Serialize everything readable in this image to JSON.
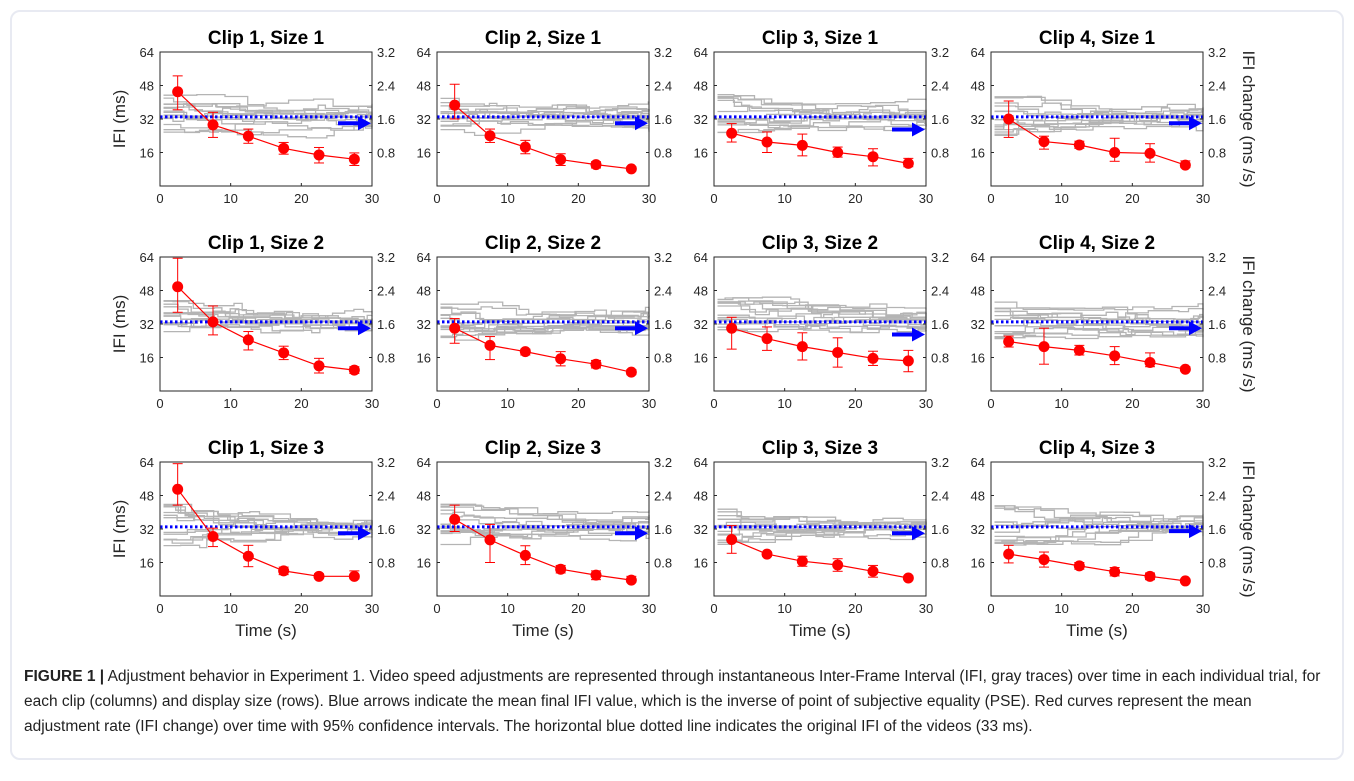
{
  "figure": {
    "caption_label": "FIGURE 1 |",
    "caption_text": " Adjustment behavior in Experiment 1. Video speed adjustments are represented through instantaneous Inter-Frame Interval (IFI, gray traces) over time in each individual trial, for each clip (columns) and display size (rows). Blue arrows indicate the mean final IFI value, which is the inverse of point of subjective equality (PSE). Red curves represent the mean adjustment rate (IFI change) over time with 95% confidence intervals. The horizontal blue dotted line indicates the original IFI of the videos (33 ms)."
  },
  "colors": {
    "trials": "#b4b4b4",
    "mean_rate": "#ff0000",
    "reference_line": "#0000ff",
    "final_arrow": "#0000ff"
  },
  "chart_data": [
    {
      "type": "line",
      "title": "Clip 1, Size 1",
      "xlabel": "",
      "ylabel": "IFI (ms)",
      "ylabel_right": "",
      "xlim": [
        0,
        30
      ],
      "ylim": [
        0,
        64
      ],
      "ylim_right": [
        0,
        3.2
      ],
      "x_ticks": [
        0,
        10,
        20,
        30
      ],
      "y_ticks": [
        16,
        32,
        48,
        64
      ],
      "y_ticks_right": [
        0.8,
        1.6,
        2.4,
        3.2
      ],
      "reference_ifi": 33,
      "final_ifi": 30,
      "series": [
        {
          "x": [
            2.5,
            7.5,
            12.5,
            17.5,
            22.5,
            27.5
          ],
          "y": [
            2.25,
            1.46,
            1.19,
            0.9,
            0.74,
            0.64
          ],
          "ci_low": [
            1.82,
            1.16,
            1.02,
            0.76,
            0.55,
            0.49
          ],
          "ci_high": [
            2.63,
            1.76,
            1.36,
            1.04,
            0.92,
            0.79
          ]
        }
      ]
    },
    {
      "type": "line",
      "title": "Clip 2, Size 1",
      "xlabel": "",
      "ylabel": "",
      "ylabel_right": "",
      "xlim": [
        0,
        30
      ],
      "ylim": [
        0,
        64
      ],
      "ylim_right": [
        0,
        3.2
      ],
      "x_ticks": [
        0,
        10,
        20,
        30
      ],
      "y_ticks": [
        16,
        32,
        48,
        64
      ],
      "y_ticks_right": [
        0.8,
        1.6,
        2.4,
        3.2
      ],
      "reference_ifi": 33,
      "final_ifi": 30,
      "series": [
        {
          "x": [
            2.5,
            7.5,
            12.5,
            17.5,
            22.5,
            27.5
          ],
          "y": [
            1.93,
            1.2,
            0.93,
            0.63,
            0.51,
            0.41
          ],
          "ci_low": [
            1.6,
            1.04,
            0.77,
            0.49,
            0.43,
            0.36
          ],
          "ci_high": [
            2.43,
            1.36,
            1.09,
            0.77,
            0.58,
            0.46
          ]
        }
      ]
    },
    {
      "type": "line",
      "title": "Clip 3, Size 1",
      "xlabel": "",
      "ylabel": "",
      "ylabel_right": "",
      "xlim": [
        0,
        30
      ],
      "ylim": [
        0,
        64
      ],
      "ylim_right": [
        0,
        3.2
      ],
      "x_ticks": [
        0,
        10,
        20,
        30
      ],
      "y_ticks": [
        16,
        32,
        48,
        64
      ],
      "y_ticks_right": [
        0.8,
        1.6,
        2.4,
        3.2
      ],
      "reference_ifi": 33,
      "final_ifi": 27,
      "series": [
        {
          "x": [
            2.5,
            7.5,
            12.5,
            17.5,
            22.5,
            27.5
          ],
          "y": [
            1.26,
            1.05,
            0.97,
            0.8,
            0.7,
            0.54
          ],
          "ci_low": [
            1.05,
            0.8,
            0.72,
            0.69,
            0.48,
            0.46
          ],
          "ci_high": [
            1.49,
            1.29,
            1.24,
            0.93,
            0.89,
            0.66
          ]
        }
      ]
    },
    {
      "type": "line",
      "title": "Clip 4, Size 1",
      "xlabel": "",
      "ylabel": "",
      "ylabel_right": "IFI change (ms /s)",
      "xlim": [
        0,
        30
      ],
      "ylim": [
        0,
        64
      ],
      "ylim_right": [
        0,
        3.2
      ],
      "x_ticks": [
        0,
        10,
        20,
        30
      ],
      "y_ticks": [
        16,
        32,
        48,
        64
      ],
      "y_ticks_right": [
        0.8,
        1.6,
        2.4,
        3.2
      ],
      "reference_ifi": 33,
      "final_ifi": 30,
      "series": [
        {
          "x": [
            2.5,
            7.5,
            12.5,
            17.5,
            22.5,
            27.5
          ],
          "y": [
            1.6,
            1.06,
            0.98,
            0.8,
            0.78,
            0.5
          ],
          "ci_low": [
            1.16,
            0.88,
            0.9,
            0.59,
            0.57,
            0.44
          ],
          "ci_high": [
            2.03,
            1.19,
            1.07,
            1.14,
            1.01,
            0.6
          ]
        }
      ]
    },
    {
      "type": "line",
      "title": "Clip 1, Size 2",
      "xlabel": "",
      "ylabel": "IFI (ms)",
      "ylabel_right": "",
      "xlim": [
        0,
        30
      ],
      "ylim": [
        0,
        64
      ],
      "ylim_right": [
        0,
        3.2
      ],
      "x_ticks": [
        0,
        10,
        20,
        30
      ],
      "y_ticks": [
        16,
        32,
        48,
        64
      ],
      "y_ticks_right": [
        0.8,
        1.6,
        2.4,
        3.2
      ],
      "reference_ifi": 33,
      "final_ifi": 30,
      "series": [
        {
          "x": [
            2.5,
            7.5,
            12.5,
            17.5,
            22.5,
            27.5
          ],
          "y": [
            2.49,
            1.65,
            1.22,
            0.91,
            0.6,
            0.5
          ],
          "ci_low": [
            1.88,
            1.34,
            0.98,
            0.75,
            0.43,
            0.42
          ],
          "ci_high": [
            3.17,
            2.03,
            1.42,
            1.07,
            0.78,
            0.58
          ]
        }
      ]
    },
    {
      "type": "line",
      "title": "Clip 2, Size 2",
      "xlabel": "",
      "ylabel": "",
      "ylabel_right": "",
      "xlim": [
        0,
        30
      ],
      "ylim": [
        0,
        64
      ],
      "ylim_right": [
        0,
        3.2
      ],
      "x_ticks": [
        0,
        10,
        20,
        30
      ],
      "y_ticks": [
        16,
        32,
        48,
        64
      ],
      "y_ticks_right": [
        0.8,
        1.6,
        2.4,
        3.2
      ],
      "reference_ifi": 33,
      "final_ifi": 30,
      "series": [
        {
          "x": [
            2.5,
            7.5,
            12.5,
            17.5,
            22.5,
            27.5
          ],
          "y": [
            1.5,
            1.09,
            0.94,
            0.77,
            0.64,
            0.45
          ],
          "ci_low": [
            1.14,
            0.75,
            0.86,
            0.6,
            0.55,
            0.39
          ],
          "ci_high": [
            1.73,
            1.3,
            1.0,
            0.94,
            0.73,
            0.51
          ]
        }
      ]
    },
    {
      "type": "line",
      "title": "Clip 3, Size 2",
      "xlabel": "",
      "ylabel": "",
      "ylabel_right": "",
      "xlim": [
        0,
        30
      ],
      "ylim": [
        0,
        64
      ],
      "ylim_right": [
        0,
        3.2
      ],
      "x_ticks": [
        0,
        10,
        20,
        30
      ],
      "y_ticks": [
        16,
        32,
        48,
        64
      ],
      "y_ticks_right": [
        0.8,
        1.6,
        2.4,
        3.2
      ],
      "reference_ifi": 33,
      "final_ifi": 27,
      "series": [
        {
          "x": [
            2.5,
            7.5,
            12.5,
            17.5,
            22.5,
            27.5
          ],
          "y": [
            1.5,
            1.25,
            1.06,
            0.92,
            0.78,
            0.72
          ],
          "ci_low": [
            1.0,
            0.97,
            0.74,
            0.57,
            0.61,
            0.46
          ],
          "ci_high": [
            1.76,
            1.53,
            1.39,
            1.27,
            0.95,
            0.97
          ]
        }
      ]
    },
    {
      "type": "line",
      "title": "Clip 4, Size 2",
      "xlabel": "",
      "ylabel": "",
      "ylabel_right": "IFI change (ms /s)",
      "xlim": [
        0,
        30
      ],
      "ylim": [
        0,
        64
      ],
      "ylim_right": [
        0,
        3.2
      ],
      "x_ticks": [
        0,
        10,
        20,
        30
      ],
      "y_ticks": [
        16,
        32,
        48,
        64
      ],
      "y_ticks_right": [
        0.8,
        1.6,
        2.4,
        3.2
      ],
      "reference_ifi": 33,
      "final_ifi": 30,
      "series": [
        {
          "x": [
            2.5,
            7.5,
            12.5,
            17.5,
            22.5,
            27.5
          ],
          "y": [
            1.18,
            1.06,
            0.97,
            0.84,
            0.68,
            0.52
          ],
          "ci_low": [
            1.05,
            0.64,
            0.86,
            0.63,
            0.58,
            0.48
          ],
          "ci_high": [
            1.31,
            1.5,
            1.09,
            1.06,
            0.91,
            0.58
          ]
        }
      ]
    },
    {
      "type": "line",
      "title": "Clip 1, Size 3",
      "xlabel": "Time (s)",
      "ylabel": "IFI (ms)",
      "ylabel_right": "",
      "xlim": [
        0,
        30
      ],
      "ylim": [
        0,
        64
      ],
      "ylim_right": [
        0,
        3.2
      ],
      "x_ticks": [
        0,
        10,
        20,
        30
      ],
      "y_ticks": [
        16,
        32,
        48,
        64
      ],
      "y_ticks_right": [
        0.8,
        1.6,
        2.4,
        3.2
      ],
      "reference_ifi": 33,
      "final_ifi": 30,
      "series": [
        {
          "x": [
            2.5,
            7.5,
            12.5,
            17.5,
            22.5,
            27.5
          ],
          "y": [
            2.55,
            1.42,
            0.95,
            0.6,
            0.47,
            0.47
          ],
          "ci_low": [
            2.17,
            1.18,
            0.7,
            0.51,
            0.44,
            0.41
          ],
          "ci_high": [
            3.16,
            1.62,
            1.21,
            0.69,
            0.53,
            0.6
          ]
        }
      ]
    },
    {
      "type": "line",
      "title": "Clip 2, Size 3",
      "xlabel": "Time (s)",
      "ylabel": "",
      "ylabel_right": "",
      "xlim": [
        0,
        30
      ],
      "ylim": [
        0,
        64
      ],
      "ylim_right": [
        0,
        3.2
      ],
      "x_ticks": [
        0,
        10,
        20,
        30
      ],
      "y_ticks": [
        16,
        32,
        48,
        64
      ],
      "y_ticks_right": [
        0.8,
        1.6,
        2.4,
        3.2
      ],
      "reference_ifi": 33,
      "final_ifi": 30,
      "series": [
        {
          "x": [
            2.5,
            7.5,
            12.5,
            17.5,
            22.5,
            27.5
          ],
          "y": [
            1.83,
            1.34,
            0.97,
            0.64,
            0.5,
            0.38
          ],
          "ci_low": [
            1.54,
            0.8,
            0.75,
            0.55,
            0.39,
            0.33
          ],
          "ci_high": [
            2.17,
            1.71,
            1.2,
            0.73,
            0.6,
            0.47
          ]
        }
      ]
    },
    {
      "type": "line",
      "title": "Clip 3, Size 3",
      "xlabel": "Time (s)",
      "ylabel": "",
      "ylabel_right": "",
      "xlim": [
        0,
        30
      ],
      "ylim": [
        0,
        64
      ],
      "ylim_right": [
        0,
        3.2
      ],
      "x_ticks": [
        0,
        10,
        20,
        30
      ],
      "y_ticks": [
        16,
        32,
        48,
        64
      ],
      "y_ticks_right": [
        0.8,
        1.6,
        2.4,
        3.2
      ],
      "reference_ifi": 33,
      "final_ifi": 30,
      "series": [
        {
          "x": [
            2.5,
            7.5,
            12.5,
            17.5,
            22.5,
            27.5
          ],
          "y": [
            1.35,
            1.0,
            0.83,
            0.74,
            0.59,
            0.43
          ],
          "ci_low": [
            1.02,
            0.95,
            0.71,
            0.59,
            0.45,
            0.39
          ],
          "ci_high": [
            1.68,
            1.05,
            0.95,
            0.89,
            0.73,
            0.48
          ]
        }
      ]
    },
    {
      "type": "line",
      "title": "Clip 4, Size 3",
      "xlabel": "Time (s)",
      "ylabel": "",
      "ylabel_right": "IFI change (ms /s)",
      "xlim": [
        0,
        30
      ],
      "ylim": [
        0,
        64
      ],
      "ylim_right": [
        0,
        3.2
      ],
      "x_ticks": [
        0,
        10,
        20,
        30
      ],
      "y_ticks": [
        16,
        32,
        48,
        64
      ],
      "y_ticks_right": [
        0.8,
        1.6,
        2.4,
        3.2
      ],
      "reference_ifi": 33,
      "final_ifi": 31,
      "series": [
        {
          "x": [
            2.5,
            7.5,
            12.5,
            17.5,
            22.5,
            27.5
          ],
          "y": [
            1.0,
            0.87,
            0.72,
            0.58,
            0.47,
            0.36
          ],
          "ci_low": [
            0.79,
            0.69,
            0.64,
            0.48,
            0.39,
            0.32
          ],
          "ci_high": [
            1.21,
            1.05,
            0.8,
            0.68,
            0.55,
            0.4
          ]
        }
      ]
    }
  ]
}
